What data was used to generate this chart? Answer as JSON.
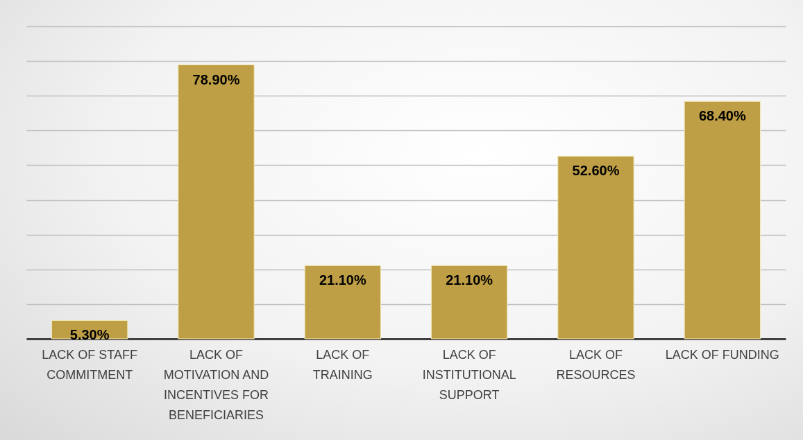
{
  "chart_data": {
    "type": "bar",
    "categories": [
      "LACK OF STAFF COMMITMENT",
      "LACK OF MOTIVATION AND INCENTIVES FOR BENEFICIARIES",
      "LACK OF TRAINING",
      "LACK OF INSTITUTIONAL SUPPORT",
      "LACK OF RESOURCES",
      "LACK OF FUNDING"
    ],
    "values": [
      5.3,
      78.9,
      21.1,
      21.1,
      52.6,
      68.4
    ],
    "value_labels": [
      "5.30%",
      "78.90%",
      "21.10%",
      "21.10%",
      "52.60%",
      "68.40%"
    ],
    "color": "#bf9f45",
    "ylim": [
      0,
      90
    ],
    "yticks": [
      {
        "value": 0,
        "label": null
      },
      {
        "value": 10,
        "label": null
      },
      {
        "value": 20,
        "label": null
      },
      {
        "value": 30,
        "label": null
      },
      {
        "value": 40,
        "label": null
      },
      {
        "value": 50,
        "label": null
      },
      {
        "value": 60,
        "label": null
      },
      {
        "value": 70,
        "label": null
      },
      {
        "value": 80,
        "label": null
      },
      {
        "value": 90,
        "label": null
      }
    ],
    "grid": "y",
    "tick_labels": "x"
  }
}
